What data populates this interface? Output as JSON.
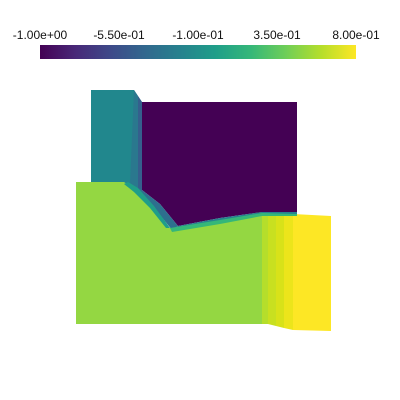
{
  "colorbar": {
    "tick_labels": [
      "-1.00e+00",
      "-5.50e-01",
      "-1.00e-01",
      "3.50e-01",
      "8.00e-01"
    ],
    "range": [
      -1.0,
      0.8
    ],
    "colormap": "viridis",
    "colors": [
      "#440154",
      "#482878",
      "#3e4989",
      "#31688e",
      "#26828e",
      "#1f9e89",
      "#35b779",
      "#6ece58",
      "#b5de2b",
      "#fde725"
    ]
  },
  "field_colors": {
    "low": "#440154",
    "teal": "#21878d",
    "green": "#94d742",
    "yellow": "#fde725"
  }
}
